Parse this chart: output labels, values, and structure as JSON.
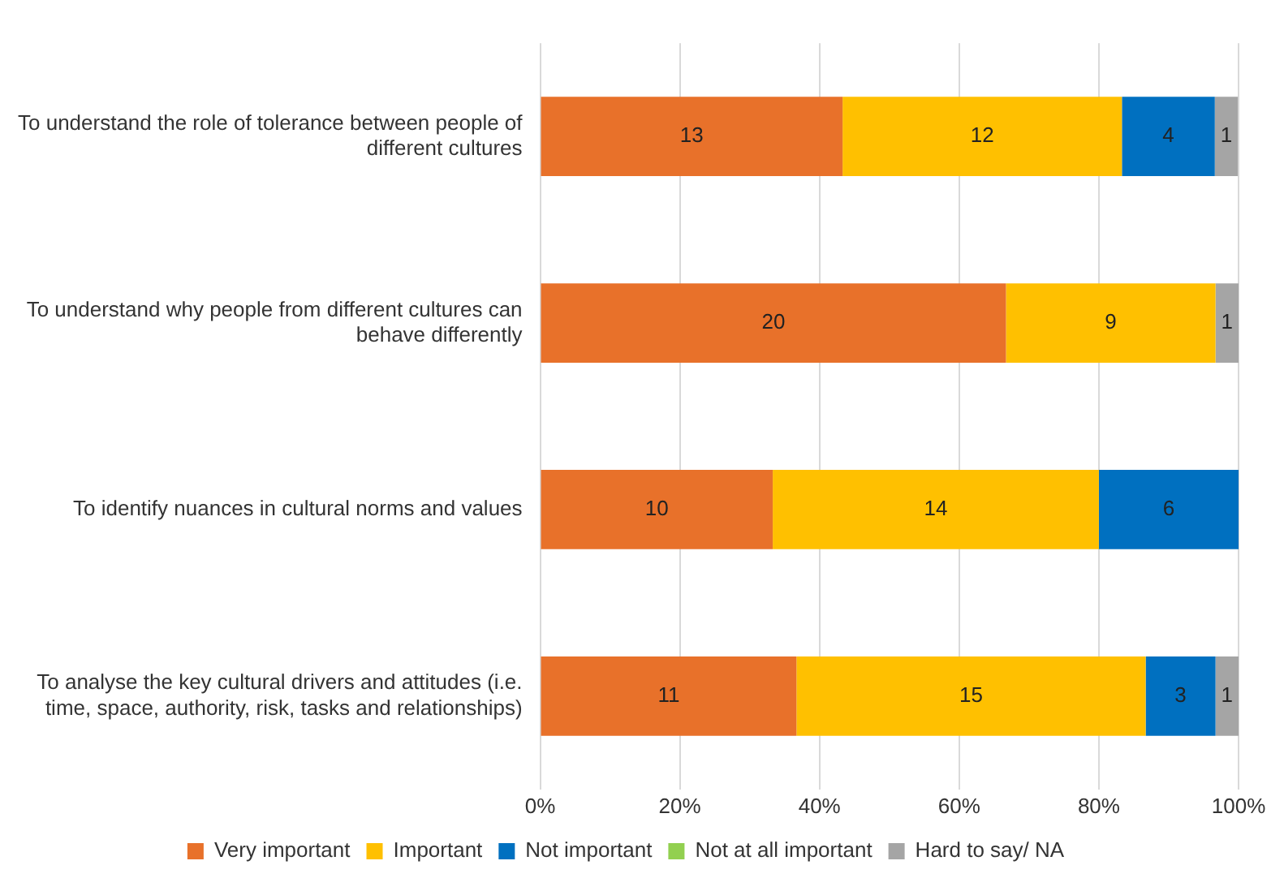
{
  "chart_data": {
    "type": "bar",
    "orientation": "horizontal",
    "stacked": true,
    "categories": [
      "To understand the role of tolerance between people of different cultures",
      "To understand why people from different cultures can behave differently",
      "To identify nuances in cultural norms and values",
      "To analyse the key cultural drivers and attitudes (i.e. time, space, authority, risk, tasks and relationships)"
    ],
    "series": [
      {
        "name": "Very important",
        "color": "#e8712a",
        "values": [
          43.3,
          66.7,
          33.3,
          36.7
        ]
      },
      {
        "name": "Important",
        "color": "#ffc000",
        "values": [
          40,
          30,
          46.7,
          50
        ]
      },
      {
        "name": "Not important",
        "color": "#0070c0",
        "values": [
          13.3,
          0,
          20,
          10
        ]
      },
      {
        "name": "Not at all important",
        "color": "#92d050",
        "values": [
          0,
          0,
          0,
          0
        ]
      },
      {
        "name": "Hard to say/ NA",
        "color": "#a5a5a5",
        "values": [
          3.3,
          3.3,
          0,
          3.3
        ]
      }
    ],
    "annotations": [
      "13",
      "12",
      "4",
      "1",
      "20",
      "9",
      "1",
      "10",
      "14",
      "6",
      "11",
      "15",
      "3",
      "1"
    ],
    "xlim": [
      0,
      100
    ],
    "xticks": [
      {
        "value": 0,
        "label": "0%"
      },
      {
        "value": 20,
        "label": "20%"
      },
      {
        "value": 40,
        "label": "40%"
      },
      {
        "value": 60,
        "label": "60%"
      },
      {
        "value": 80,
        "label": "80%"
      },
      {
        "value": 100,
        "label": "100%"
      }
    ],
    "grid": "x",
    "legend": "bottom"
  }
}
